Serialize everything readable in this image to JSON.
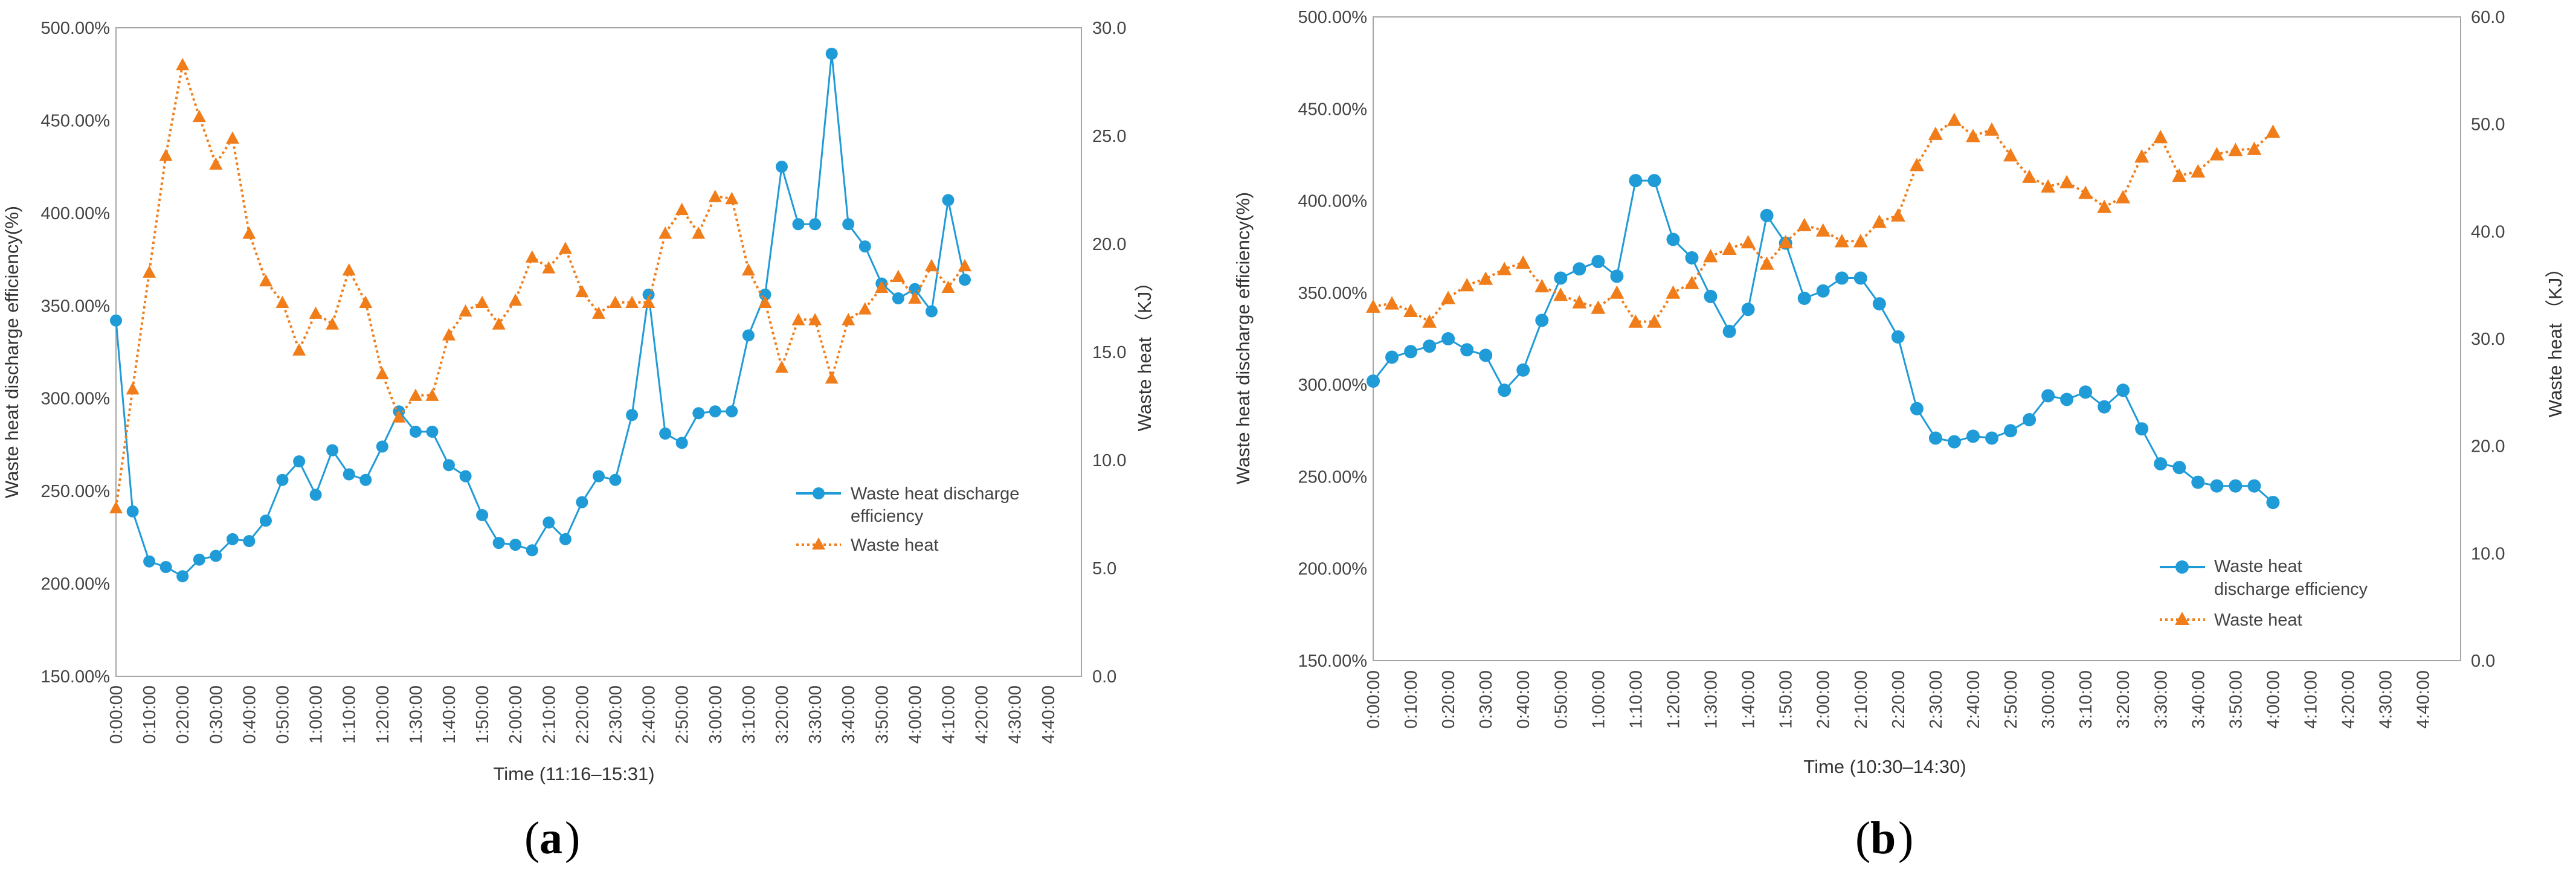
{
  "chart_data": [
    {
      "type": "line",
      "panel": "a",
      "xlabel": "Time (11:16–15:31)",
      "ylabel": "Waste heat discharge efficiency(%)",
      "y2label": "Waste heat （KJ）",
      "ylim": [
        1.5,
        5.0
      ],
      "y2lim": [
        0,
        30
      ],
      "yticks": [
        "150.00%",
        "200.00%",
        "250.00%",
        "300.00%",
        "350.00%",
        "400.00%",
        "450.00%",
        "500.00%"
      ],
      "y2ticks": [
        "0.0",
        "5.0",
        "10.0",
        "15.0",
        "20.0",
        "25.0",
        "30.0"
      ],
      "xticks": [
        "0:00:00",
        "0:10:00",
        "0:20:00",
        "0:30:00",
        "0:40:00",
        "0:50:00",
        "1:00:00",
        "1:10:00",
        "1:20:00",
        "1:30:00",
        "1:40:00",
        "1:50:00",
        "2:00:00",
        "2:10:00",
        "2:20:00",
        "2:30:00",
        "2:40:00",
        "2:50:00",
        "3:00:00",
        "3:10:00",
        "3:20:00",
        "3:30:00",
        "3:40:00",
        "3:50:00",
        "4:00:00",
        "4:10:00",
        "4:20:00",
        "4:30:00",
        "4:40:00"
      ],
      "x_minutes": [
        0,
        5,
        10,
        15,
        20,
        25,
        30,
        35,
        40,
        45,
        50,
        55,
        60,
        65,
        70,
        75,
        80,
        85,
        90,
        95,
        100,
        105,
        110,
        115,
        120,
        125,
        130,
        135,
        140,
        145,
        150,
        155,
        160,
        165,
        170,
        175,
        180,
        185,
        190,
        195,
        200,
        205,
        210,
        215,
        220,
        225,
        230,
        235,
        240,
        245,
        250,
        255
      ],
      "grid": false,
      "legend_position": "center-right",
      "series": [
        {
          "name": "Waste heat discharge efficiency",
          "axis": "left",
          "color": "#1f9bd7",
          "marker": "circle",
          "line": "solid",
          "values": [
            3.42,
            2.39,
            2.12,
            2.09,
            2.04,
            2.13,
            2.15,
            2.24,
            2.23,
            2.34,
            2.56,
            2.66,
            2.48,
            2.72,
            2.59,
            2.56,
            2.74,
            2.93,
            2.82,
            2.82,
            2.64,
            2.58,
            2.37,
            2.22,
            2.21,
            2.18,
            2.33,
            2.24,
            2.44,
            2.58,
            2.56,
            2.91,
            3.56,
            2.81,
            2.76,
            2.92,
            2.93,
            2.93,
            3.34,
            3.56,
            4.25,
            3.94,
            3.94,
            4.86,
            3.94,
            3.82,
            3.62,
            3.54,
            3.59,
            3.47,
            4.07,
            3.64
          ]
        },
        {
          "name": "Waste heat",
          "axis": "right",
          "color": "#f07d1a",
          "marker": "triangle",
          "line": "dotted",
          "values": [
            7.8,
            13.3,
            18.7,
            24.1,
            28.3,
            25.9,
            23.7,
            24.9,
            20.5,
            18.3,
            17.3,
            15.1,
            16.8,
            16.3,
            18.8,
            17.3,
            14.0,
            12.0,
            13.0,
            13.0,
            15.8,
            16.9,
            17.3,
            16.3,
            17.4,
            19.4,
            18.9,
            19.8,
            17.8,
            16.8,
            17.3,
            17.3,
            17.3,
            20.5,
            21.6,
            20.5,
            22.2,
            22.1,
            18.8,
            17.3,
            14.3,
            16.5,
            16.5,
            13.8,
            16.5,
            17.0,
            18.0,
            18.5,
            17.5,
            19.0,
            18.0,
            19.0
          ]
        }
      ]
    },
    {
      "type": "line",
      "panel": "b",
      "xlabel": "Time (10:30–14:30)",
      "ylabel": "Waste heat discharge efficiency(%)",
      "y2label": "Waste heat （KJ）",
      "ylim": [
        1.5,
        5.0
      ],
      "y2lim": [
        0,
        60
      ],
      "yticks": [
        "150.00%",
        "200.00%",
        "250.00%",
        "300.00%",
        "350.00%",
        "400.00%",
        "450.00%",
        "500.00%"
      ],
      "y2ticks": [
        "0.0",
        "10.0",
        "20.0",
        "30.0",
        "40.0",
        "50.0",
        "60.0"
      ],
      "xticks": [
        "0:00:00",
        "0:10:00",
        "0:20:00",
        "0:30:00",
        "0:40:00",
        "0:50:00",
        "1:00:00",
        "1:10:00",
        "1:20:00",
        "1:30:00",
        "1:40:00",
        "1:50:00",
        "2:00:00",
        "2:10:00",
        "2:20:00",
        "2:30:00",
        "2:40:00",
        "2:50:00",
        "3:00:00",
        "3:10:00",
        "3:20:00",
        "3:30:00",
        "3:40:00",
        "3:50:00",
        "4:00:00",
        "4:10:00",
        "4:20:00",
        "4:30:00",
        "4:40:00"
      ],
      "x_minutes": [
        0,
        5,
        10,
        15,
        20,
        25,
        30,
        35,
        40,
        45,
        50,
        55,
        60,
        65,
        70,
        75,
        80,
        85,
        90,
        95,
        100,
        105,
        110,
        115,
        120,
        125,
        130,
        135,
        140,
        145,
        150,
        155,
        160,
        165,
        170,
        175,
        180,
        185,
        190,
        195,
        200,
        205,
        210,
        215,
        220,
        225,
        230,
        235,
        240
      ],
      "grid": false,
      "legend_position": "bottom-right",
      "series": [
        {
          "name": "Waste heat discharge efficiency",
          "legend_lines": [
            "Waste heat",
            "discharge efficiency"
          ],
          "axis": "left",
          "color": "#1f9bd7",
          "marker": "circle",
          "line": "solid",
          "values": [
            3.02,
            3.15,
            3.18,
            3.21,
            3.25,
            3.19,
            3.16,
            2.97,
            3.08,
            3.35,
            3.58,
            3.63,
            3.67,
            3.59,
            4.11,
            4.11,
            3.79,
            3.69,
            3.48,
            3.29,
            3.41,
            3.92,
            3.77,
            3.47,
            3.51,
            3.58,
            3.58,
            3.44,
            3.26,
            2.87,
            2.71,
            2.69,
            2.72,
            2.71,
            2.75,
            2.81,
            2.94,
            2.92,
            2.96,
            2.88,
            2.97,
            2.76,
            2.57,
            2.55,
            2.47,
            2.45,
            2.45,
            2.45,
            2.36
          ]
        },
        {
          "name": "Waste heat",
          "axis": "right",
          "color": "#f07d1a",
          "marker": "triangle",
          "line": "dotted",
          "values": [
            33.0,
            33.3,
            32.6,
            31.6,
            33.8,
            35.0,
            35.6,
            36.5,
            37.1,
            34.9,
            34.1,
            33.4,
            32.9,
            34.3,
            31.6,
            31.6,
            34.3,
            35.2,
            37.7,
            38.4,
            39.0,
            37.0,
            39.0,
            40.6,
            40.1,
            39.1,
            39.1,
            40.9,
            41.5,
            46.2,
            49.1,
            50.4,
            48.9,
            49.5,
            47.1,
            45.1,
            44.2,
            44.6,
            43.6,
            42.3,
            43.2,
            47.0,
            48.8,
            45.2,
            45.6,
            47.2,
            47.6,
            47.7,
            49.3
          ]
        }
      ]
    }
  ],
  "legend": {
    "a": {
      "efficiency_line1": "Waste heat discharge",
      "efficiency_line2": "efficiency",
      "heat": "Waste heat"
    },
    "b": {
      "efficiency_line1": "Waste heat",
      "efficiency_line2": "discharge efficiency",
      "heat": "Waste heat"
    }
  },
  "panel_labels": {
    "a": "a",
    "b": "b"
  }
}
